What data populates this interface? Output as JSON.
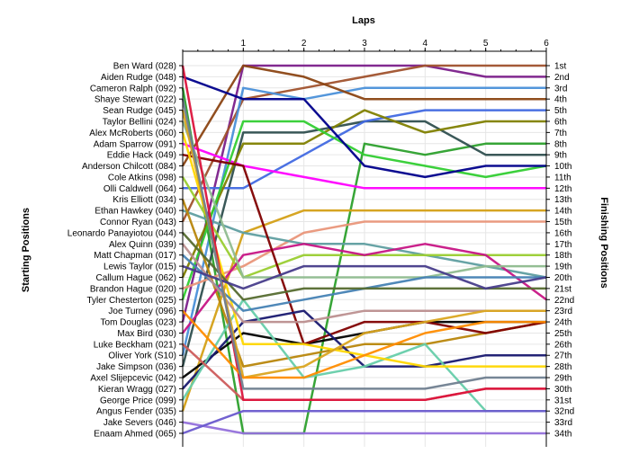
{
  "chart_data": {
    "type": "line",
    "title": "",
    "xlabel": "Laps",
    "ylabel_left": "Starting Positions",
    "ylabel_right": "Finishing Positions",
    "x": [
      0,
      1,
      2,
      3,
      4,
      5,
      6
    ],
    "x_tick_labels": [
      "1",
      "2",
      "3",
      "4",
      "5",
      "6"
    ],
    "y_range": [
      1,
      34
    ],
    "grid": true,
    "starting_labels": [
      "Ben Ward (028)",
      "Aiden Rudge (048)",
      "Cameron Ralph (092)",
      "Shaye Stewart (022)",
      "Sean Rudge (045)",
      "Taylor Bellini (024)",
      "Alex McRoberts (060)",
      "Adam Sparrow (091)",
      "Eddie Hack (049)",
      "Anderson Chilcott (084)",
      "Cole Atkins (098)",
      "Olli Caldwell (064)",
      "Kris Elliott (034)",
      "Ethan Hawkey (040)",
      "Connor Ryan (043)",
      "Leonardo Panayiotou (044)",
      "Alex Quinn (039)",
      "Matt Chapman (017)",
      "Lewis Taylor (015)",
      "Callum Hague (062)",
      "Brandon Hague (020)",
      "Tyler Chesterton (025)",
      "Joe Turney (096)",
      "Tom Douglas (023)",
      "Max Bird (030)",
      "Luke Beckham (021)",
      "Oliver York (S10)",
      "Jake Simpson (036)",
      "Axel Slijepcevic (042)",
      "Kieran Wragg (027)",
      "George Price (099)",
      "Angus Fender (035)",
      "Jake Severs (046)",
      "Enaam Ahmed (065)"
    ],
    "finishing_labels": [
      "1st",
      "2nd",
      "3rd",
      "4th",
      "5th",
      "6th",
      "7th",
      "8th",
      "9th",
      "10th",
      "11th",
      "12th",
      "13th",
      "14th",
      "15th",
      "16th",
      "17th",
      "18th",
      "19th",
      "20th",
      "21st",
      "22nd",
      "23rd",
      "24th",
      "25th",
      "26th",
      "27th",
      "28th",
      "29th",
      "30th",
      "31st",
      "32nd",
      "33rd",
      "34th"
    ],
    "series": [
      {
        "color": "#7b1f8a",
        "values": [
          24,
          1,
          1,
          1,
          1,
          2,
          2
        ]
      },
      {
        "color": "#a0522d",
        "values": [
          15,
          4,
          3,
          2,
          1,
          1,
          1
        ]
      },
      {
        "color": "#4a90d9",
        "values": [
          27,
          3,
          4,
          3,
          3,
          3,
          3
        ]
      },
      {
        "color": "#8b4513",
        "values": [
          10,
          1,
          2,
          4,
          4,
          4,
          4
        ]
      },
      {
        "color": "#2ca02c",
        "values": [
          3,
          34,
          34,
          8,
          9,
          8,
          8
        ]
      },
      {
        "color": "#2f4f4f",
        "values": [
          28,
          7,
          7,
          6,
          6,
          9,
          9
        ]
      },
      {
        "color": "#4169e1",
        "values": [
          12,
          12,
          9,
          6,
          5,
          5,
          5
        ]
      },
      {
        "color": "#ff00ff",
        "values": [
          8,
          10,
          11,
          12,
          12,
          12,
          12
        ]
      },
      {
        "color": "#808000",
        "values": [
          20,
          8,
          8,
          5,
          7,
          6,
          6
        ]
      },
      {
        "color": "#32cd32",
        "values": [
          22,
          6,
          6,
          9,
          10,
          11,
          10
        ]
      },
      {
        "color": "#00008b",
        "values": [
          2,
          4,
          4,
          10,
          11,
          10,
          10
        ]
      },
      {
        "color": "#d4a017",
        "values": [
          32,
          16,
          14,
          14,
          14,
          14,
          14
        ]
      },
      {
        "color": "#e9967a",
        "values": [
          21,
          19,
          16,
          15,
          15,
          15,
          15
        ]
      },
      {
        "color": "#5f9ea0",
        "values": [
          14,
          16,
          17,
          17,
          18,
          19,
          20
        ]
      },
      {
        "color": "#9370db",
        "values": [
          33,
          34,
          34,
          34,
          34,
          34,
          34
        ]
      },
      {
        "color": "#9acd32",
        "values": [
          11,
          20,
          18,
          18,
          18,
          18,
          18
        ]
      },
      {
        "color": "#b8860b",
        "values": [
          13,
          28,
          27,
          26,
          26,
          25,
          24
        ]
      },
      {
        "color": "#c71585",
        "values": [
          25,
          18,
          17,
          18,
          17,
          18,
          22
        ]
      },
      {
        "color": "#000000",
        "values": [
          29,
          25,
          26,
          25,
          24,
          24,
          24
        ]
      },
      {
        "color": "#800000",
        "values": [
          9,
          10,
          26,
          24,
          24,
          25,
          24
        ]
      },
      {
        "color": "#191970",
        "values": [
          30,
          24,
          23,
          28,
          28,
          27,
          27
        ]
      },
      {
        "color": "#66cdaa",
        "values": [
          31,
          22,
          29,
          28,
          26,
          32,
          32
        ]
      },
      {
        "color": "#cd5c5c",
        "values": [
          26,
          31,
          31,
          31,
          31,
          30,
          30
        ]
      },
      {
        "color": "#ffd700",
        "values": [
          7,
          26,
          26,
          27,
          28,
          28,
          28
        ]
      },
      {
        "color": "#8fbc8f",
        "values": [
          6,
          20,
          20,
          20,
          20,
          19,
          19
        ]
      },
      {
        "color": "#4682b4",
        "values": [
          18,
          23,
          22,
          21,
          20,
          20,
          20
        ]
      },
      {
        "color": "#dc143c",
        "values": [
          1,
          31,
          31,
          31,
          31,
          30,
          30
        ]
      },
      {
        "color": "#556b2f",
        "values": [
          16,
          22,
          21,
          21,
          21,
          21,
          21
        ]
      },
      {
        "color": "#bc8f8f",
        "values": [
          17,
          24,
          24,
          23,
          23,
          23,
          23
        ]
      },
      {
        "color": "#daa520",
        "values": [
          5,
          29,
          28,
          25,
          24,
          23,
          23
        ]
      },
      {
        "color": "#483d8b",
        "values": [
          19,
          21,
          19,
          19,
          19,
          21,
          20
        ]
      },
      {
        "color": "#ff8c00",
        "values": [
          23,
          29,
          29,
          27,
          25,
          24,
          24
        ]
      },
      {
        "color": "#708090",
        "values": [
          4,
          30,
          30,
          30,
          30,
          29,
          29
        ]
      },
      {
        "color": "#6a5acd",
        "values": [
          34,
          32,
          32,
          32,
          32,
          32,
          32
        ]
      }
    ]
  }
}
